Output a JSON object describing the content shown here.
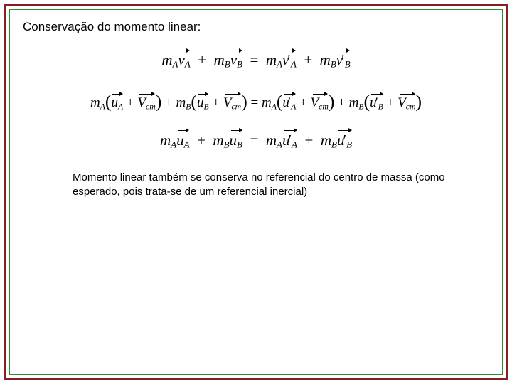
{
  "frame": {
    "outer_border_color": "#8a1e1e",
    "inner_border_color": "#2e8b2e",
    "background": "#ffffff"
  },
  "title": {
    "text": "Conservação do momento linear:",
    "color": "#000000",
    "fontsize": 17
  },
  "equations": {
    "eq1": {
      "mA": "m",
      "subA": "A",
      "vA": "v",
      "mB": "m",
      "subB": "B",
      "vB": "v",
      "eq": "=",
      "plus": "+",
      "prime": "′"
    },
    "eq2": {
      "uA": "u",
      "uB": "u",
      "Vcm": "V",
      "cm": "cm"
    },
    "eq3": {
      "text_plain": "mA uA + mB uB = mA u′A + mB u′B"
    }
  },
  "conclusion": {
    "text": "Momento linear também se conserva no referencial do centro de massa (como esperado, pois trata-se de um referencial inercial)",
    "color": "#000000",
    "fontsize": 15
  }
}
